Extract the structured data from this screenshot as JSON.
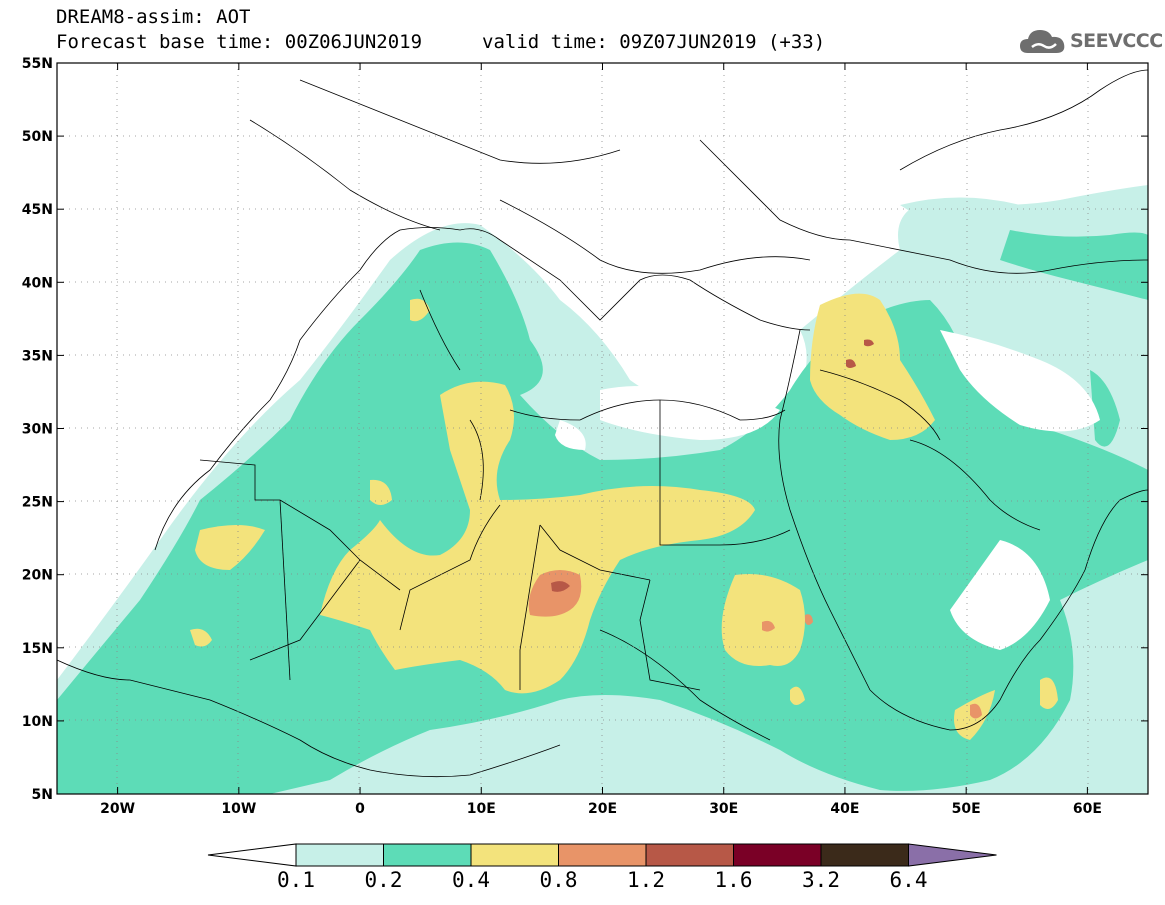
{
  "header": {
    "title_line1": "DREAM8-assim: AOT",
    "base_time": "Forecast base time: 00Z06JUN2019",
    "valid_time": "valid time: 09Z07JUN2019 (+33)"
  },
  "logo": {
    "text": "SEEVCCC",
    "icon": "cloud-icon"
  },
  "map": {
    "lat_labels": [
      "55N",
      "50N",
      "45N",
      "40N",
      "35N",
      "30N",
      "25N",
      "20N",
      "15N",
      "10N",
      "5N"
    ],
    "lon_labels": [
      "20W",
      "10W",
      "0",
      "10E",
      "20E",
      "30E",
      "40E",
      "50E",
      "60E"
    ],
    "extent": {
      "lon_min": -25,
      "lon_max": 65,
      "lat_min": 5,
      "lat_max": 55
    }
  },
  "colorbar": {
    "labels": [
      "0.1",
      "0.2",
      "0.4",
      "0.8",
      "1.2",
      "1.6",
      "3.2",
      "6.4"
    ],
    "colors": [
      "#ffffff",
      "#c7f0e8",
      "#5ddcb7",
      "#f3e37c",
      "#e89468",
      "#b75847",
      "#7a0026",
      "#3b2a1a",
      "#8a6fa8"
    ]
  }
}
